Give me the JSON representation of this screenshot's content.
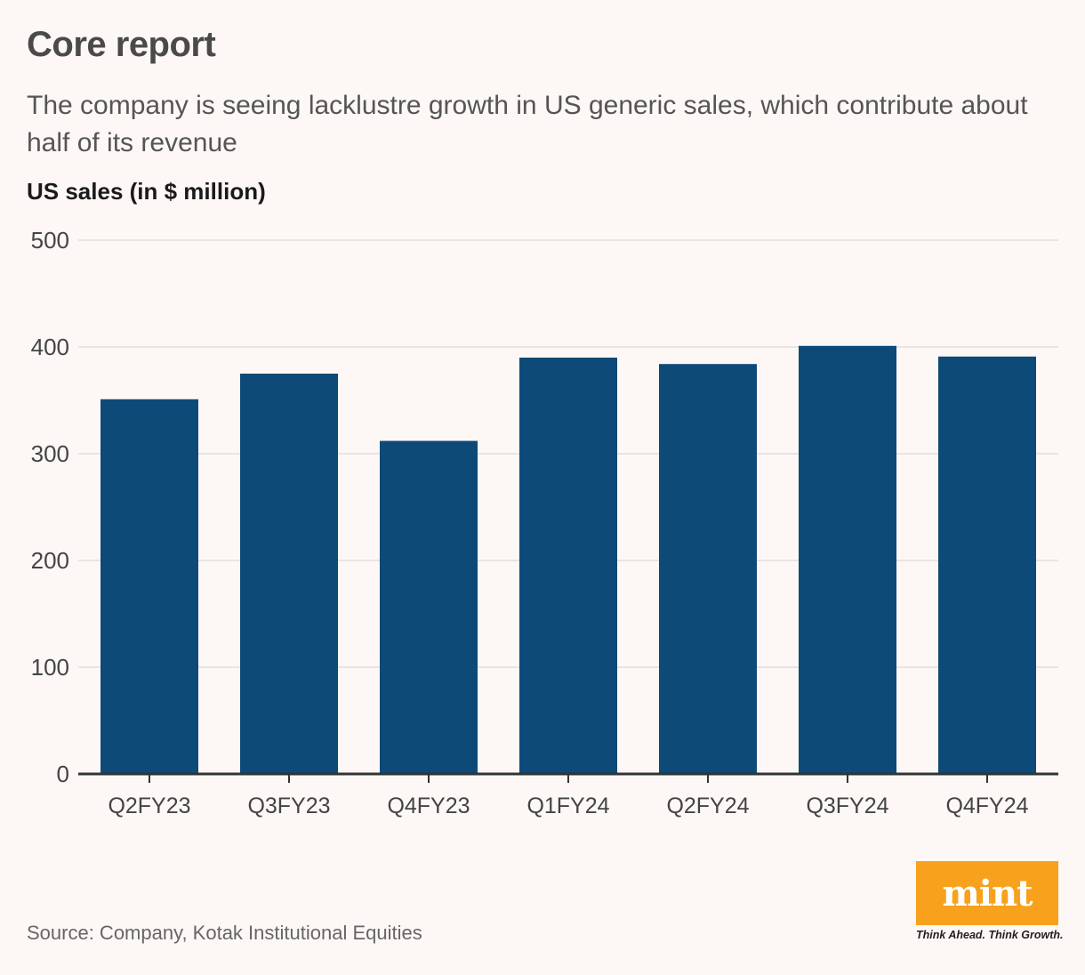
{
  "header": {
    "title": "Core report",
    "subtitle": "The company is seeing lacklustre growth in US generic sales, which contribute about half of its revenue"
  },
  "chart_data": {
    "type": "bar",
    "title": "Core report",
    "ylabel": "US sales (in $ million)",
    "xlabel": "",
    "categories": [
      "Q2FY23",
      "Q3FY23",
      "Q4FY23",
      "Q1FY24",
      "Q2FY24",
      "Q3FY24",
      "Q4FY24"
    ],
    "values": [
      351,
      375,
      312,
      390,
      384,
      401,
      391
    ],
    "ylim": [
      0,
      500
    ],
    "yticks": [
      0,
      100,
      200,
      300,
      400,
      500
    ],
    "grid": true,
    "bar_color": "#0d4a78"
  },
  "footer": {
    "source": "Source: Company, Kotak Institutional Equities",
    "logo_text": "mint",
    "tagline": "Think Ahead. Think Growth."
  },
  "colors": {
    "background": "#fdf8f6",
    "bar": "#0d4a78",
    "grid": "#e2dedc",
    "axis": "#333333",
    "logo_bg": "#f7a11c"
  }
}
